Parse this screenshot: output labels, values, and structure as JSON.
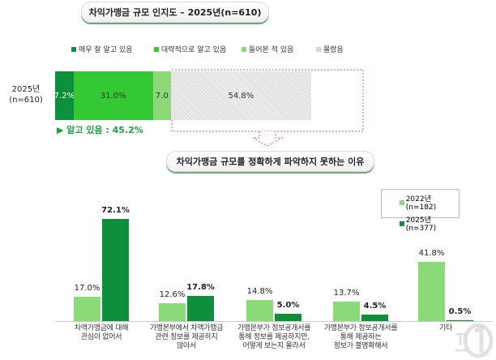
{
  "chart_data": [
    {
      "type": "bar",
      "stacked": true,
      "orientation": "horizontal",
      "title": "차익가맹금 규모 인지도 – 2025년(n=610)",
      "categories": [
        "2025년\n(n=610)"
      ],
      "category_label_lines": [
        "2025년",
        "(n=610)"
      ],
      "series": [
        {
          "name": "매우 잘 알고 있음",
          "values": [
            7.2
          ],
          "label": "7.2%",
          "color": "#0e8f3c"
        },
        {
          "name": "대략적으로 알고 있음",
          "values": [
            31.0
          ],
          "label": "31.0%",
          "color": "#34c934"
        },
        {
          "name": "들어본 적 있음",
          "values": [
            7.0
          ],
          "label": "7.0",
          "color": "#8cd97a"
        },
        {
          "name": "몰랐음",
          "values": [
            54.8
          ],
          "label": "54.8%",
          "color": "#d4d4d4"
        }
      ],
      "annotation": "▶ 알고 있음 : 45.2%",
      "legend": "top"
    },
    {
      "type": "bar",
      "title": "차익가맹금 규모를 정확하게 파악하지 못하는 이유",
      "categories": [
        [
          "차액가맹금에 대해",
          "관심이 없어서"
        ],
        [
          "가맹본부에서 차액가맹금",
          "관련 정보를 제공하지",
          "않아서"
        ],
        [
          "가맹본부가 정보공개서를",
          "통해 정보를 제공하지만,",
          "어떻게 보는지 몰라서"
        ],
        [
          "가맹본부가 정보공개서를",
          "통해 제공하는",
          "정보가 불명확해서"
        ],
        [
          "기타"
        ]
      ],
      "series": [
        {
          "name": "2022년(n=182)",
          "values": [
            17.0,
            12.6,
            14.8,
            13.7,
            41.8
          ],
          "color": "#8cd97a"
        },
        {
          "name": "2025년(n=377)",
          "values": [
            72.1,
            17.8,
            5.0,
            4.5,
            0.5
          ],
          "color": "#0e8f3c"
        }
      ],
      "ylim": [
        0,
        75
      ],
      "legend": "top-right",
      "grid": false
    }
  ],
  "watermark": "뉴스1"
}
